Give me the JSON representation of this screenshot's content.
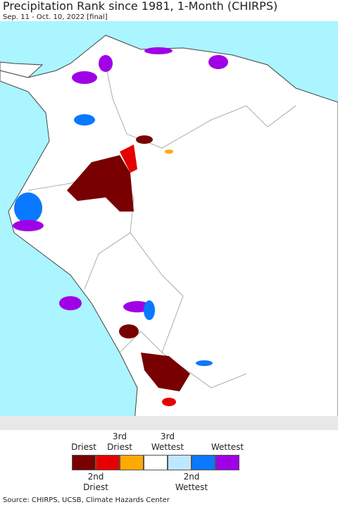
{
  "header": {
    "title": "Precipitation Rank since 1981, 1-Month (CHIRPS)",
    "subtitle": "Sep. 11 - Oct. 10, 2022 [final]"
  },
  "legend": {
    "items": [
      {
        "label": "Driest",
        "color": "#780000"
      },
      {
        "label": "2nd Driest",
        "color": "#e60000"
      },
      {
        "label": "3rd Driest",
        "color": "#ffaa00"
      },
      {
        "label": null,
        "color": "#ffffff"
      },
      {
        "label": "3rd Wettest",
        "color": "#bee8ff"
      },
      {
        "label": "2nd Wettest",
        "color": "#0a78ff"
      },
      {
        "label": "Wettest",
        "color": "#a000e6"
      }
    ]
  },
  "footer": {
    "source": "Source: CHIRPS, UCSB, Climate Hazards Center"
  }
}
